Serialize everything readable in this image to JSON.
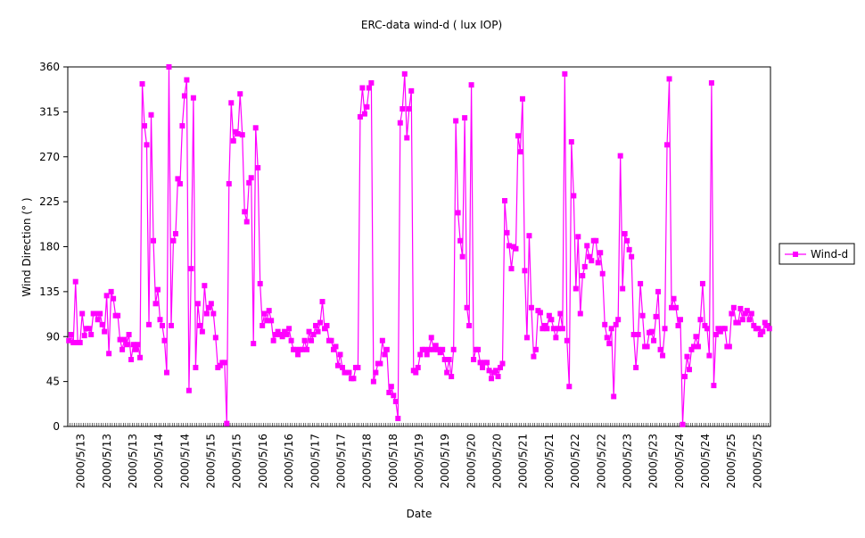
{
  "chart_data": {
    "type": "line",
    "title": "ERC-data wind-d ( lux IOP)",
    "xlabel": "Date",
    "ylabel": "Wind Direction (° )",
    "ylim": [
      0,
      360
    ],
    "yticks": [
      0,
      45,
      90,
      135,
      180,
      225,
      270,
      315,
      360
    ],
    "xtick_labels": [
      "2000/5/13",
      "2000/5/13",
      "2000/5/13",
      "2000/5/14",
      "2000/5/14",
      "2000/5/15",
      "2000/5/15",
      "2000/5/16",
      "2000/5/16",
      "2000/5/17",
      "2000/5/17",
      "2000/5/18",
      "2000/5/18",
      "2000/5/19",
      "2000/5/19",
      "2000/5/20",
      "2000/5/20",
      "2000/5/21",
      "2000/5/21",
      "2000/5/22",
      "2000/5/22",
      "2000/5/23",
      "2000/5/23",
      "2000/5/24",
      "2000/5/24",
      "2000/5/25",
      "2000/5/25"
    ],
    "grid": false,
    "legend_position": "right",
    "color": "#FF00FF",
    "series": [
      {
        "name": "Wind-d",
        "values": [
          86,
          92,
          84,
          145,
          84,
          84,
          113,
          91,
          98,
          98,
          92,
          113,
          113,
          107,
          113,
          102,
          95,
          131,
          73,
          135,
          128,
          111,
          111,
          87,
          77,
          87,
          82,
          92,
          67,
          82,
          77,
          82,
          69,
          343,
          301,
          282,
          102,
          312,
          186,
          123,
          137,
          107,
          101,
          86,
          54,
          360,
          101,
          186,
          193,
          248,
          243,
          301,
          331,
          347,
          36,
          158,
          329,
          59,
          123,
          101,
          95,
          141,
          113,
          119,
          123,
          113,
          89,
          59,
          61,
          64,
          64,
          3,
          243,
          324,
          286,
          295,
          293,
          333,
          292,
          215,
          205,
          244,
          249,
          83,
          299,
          259,
          143,
          101,
          113,
          106,
          116,
          106,
          86,
          92,
          95,
          92,
          90,
          95,
          92,
          98,
          86,
          77,
          77,
          72,
          77,
          77,
          86,
          77,
          95,
          86,
          92,
          101,
          95,
          104,
          125,
          98,
          101,
          86,
          86,
          77,
          80,
          61,
          72,
          59,
          54,
          54,
          54,
          48,
          48,
          59,
          59,
          310,
          339,
          313,
          320,
          339,
          344,
          45,
          54,
          63,
          63,
          86,
          72,
          77,
          34,
          40,
          31,
          25,
          8,
          304,
          318,
          353,
          289,
          318,
          336,
          56,
          54,
          59,
          72,
          77,
          77,
          72,
          77,
          89,
          77,
          81,
          77,
          74,
          77,
          67,
          54,
          67,
          50,
          77,
          306,
          214,
          186,
          170,
          309,
          119,
          101,
          342,
          67,
          77,
          77,
          64,
          59,
          64,
          64,
          56,
          48,
          54,
          56,
          50,
          59,
          63,
          226,
          194,
          181,
          158,
          180,
          178,
          291,
          275,
          328,
          156,
          89,
          191,
          119,
          70,
          77,
          116,
          114,
          98,
          101,
          98,
          111,
          107,
          98,
          89,
          98,
          113,
          98,
          353,
          86,
          40,
          285,
          231,
          138,
          190,
          113,
          151,
          160,
          181,
          170,
          166,
          186,
          186,
          164,
          174,
          153,
          102,
          89,
          83,
          98,
          30,
          102,
          107,
          271,
          138,
          193,
          186,
          177,
          170,
          92,
          59,
          92,
          143,
          111,
          80,
          80,
          94,
          95,
          86,
          110,
          135,
          77,
          71,
          98,
          282,
          348,
          119,
          128,
          119,
          101,
          107,
          2,
          50,
          70,
          57,
          77,
          80,
          90,
          80,
          107,
          143,
          101,
          98,
          71,
          344,
          41,
          92,
          98,
          95,
          98,
          98,
          80,
          80,
          113,
          119,
          104,
          104,
          118,
          107,
          113,
          116,
          107,
          113,
          101,
          98,
          98,
          92,
          95,
          104,
          101,
          98
        ]
      }
    ]
  }
}
